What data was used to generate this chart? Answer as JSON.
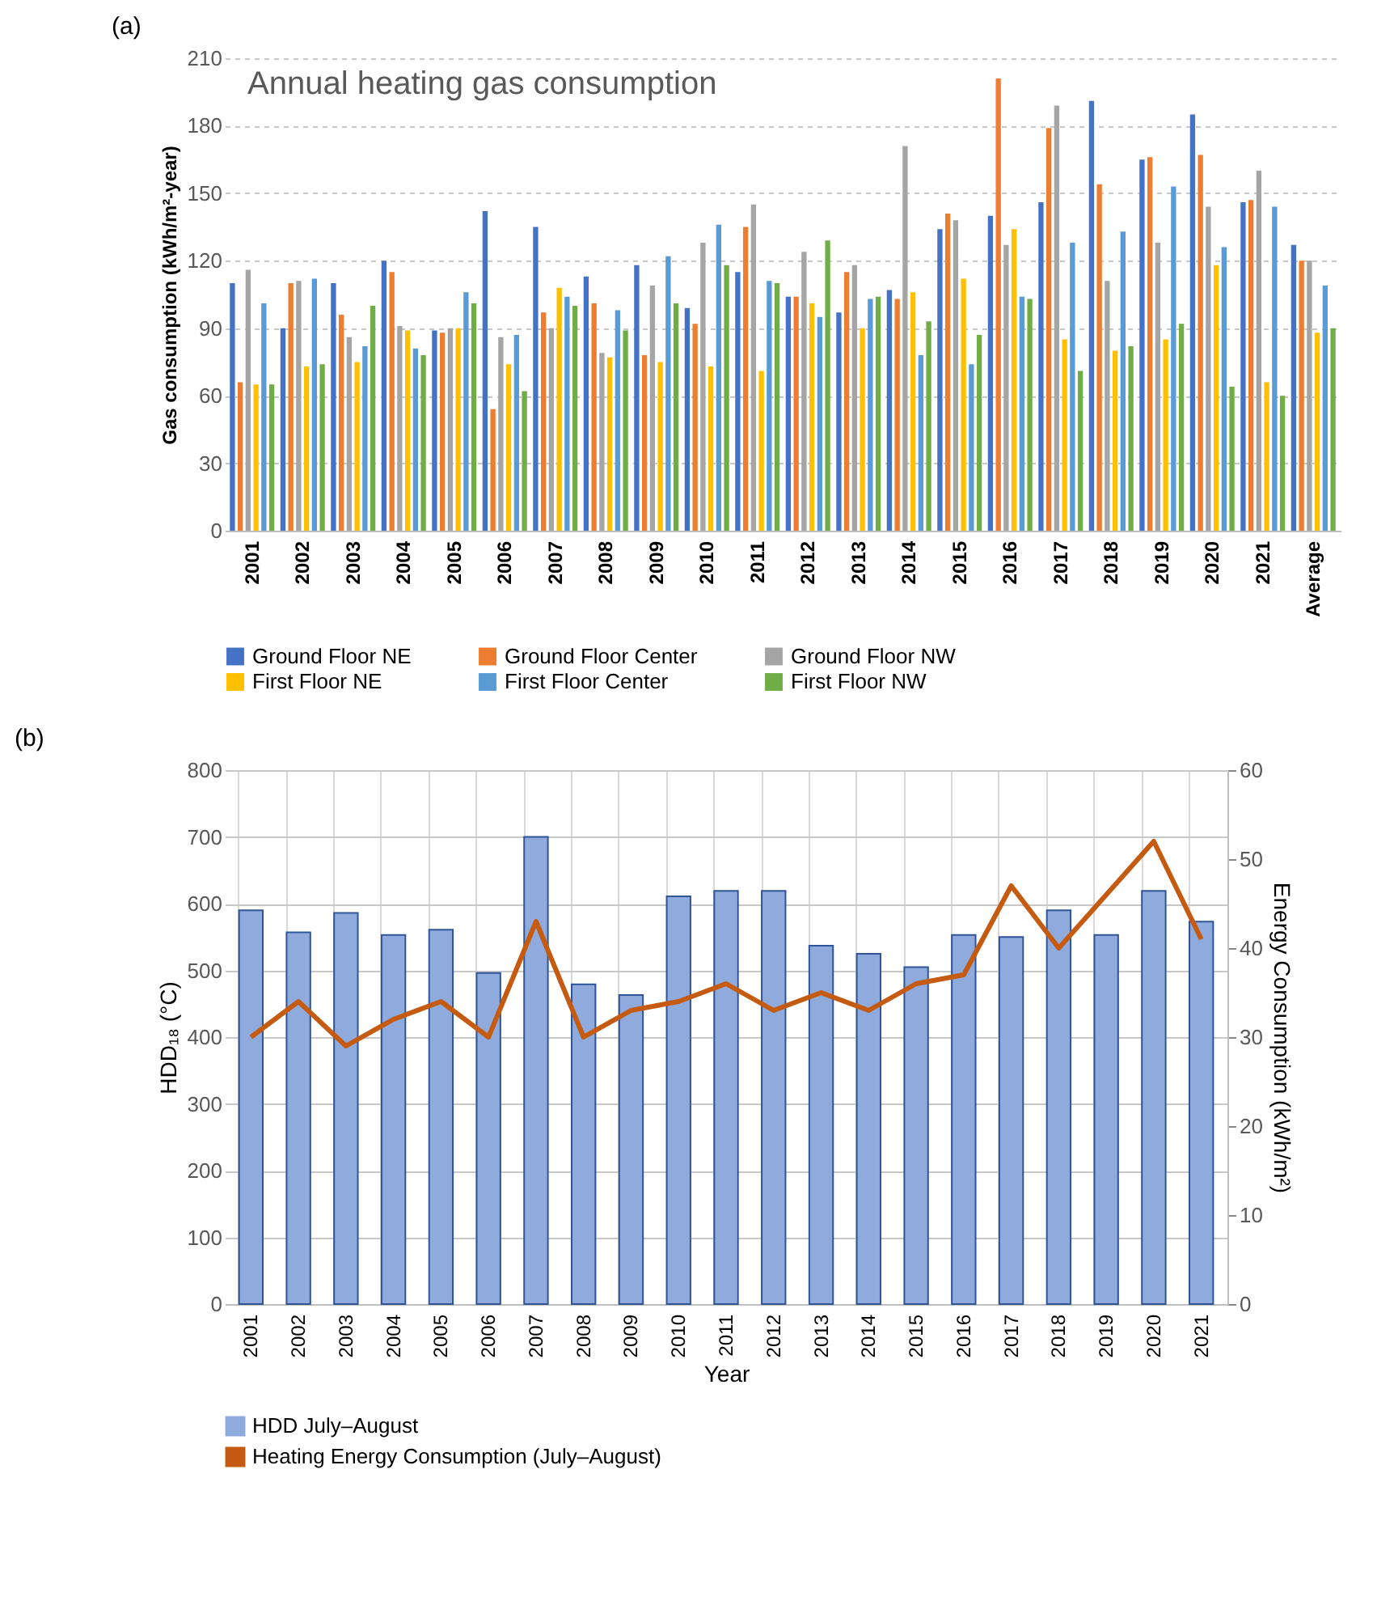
{
  "chart_data": [
    {
      "type": "bar",
      "title": "Annual heating gas consumption",
      "ylabel": "Gas consumption  (kWh/m²-year)",
      "annotations": [
        "(a)"
      ],
      "categories": [
        "2001",
        "2002",
        "2003",
        "2004",
        "2005",
        "2006",
        "2007",
        "2008",
        "2009",
        "2010",
        "2011",
        "2012",
        "2013",
        "2014",
        "2015",
        "2016",
        "2017",
        "2018",
        "2019",
        "2020",
        "2021",
        "Average"
      ],
      "series": [
        {
          "name": "Ground Floor NE",
          "color": "#4472c4",
          "values": [
            110,
            90,
            110,
            120,
            89,
            142,
            135,
            113,
            118,
            99,
            115,
            104,
            97,
            107,
            134,
            140,
            146,
            191,
            165,
            185,
            146,
            127
          ]
        },
        {
          "name": "Ground Floor Center",
          "color": "#ed7d31",
          "values": [
            66,
            110,
            96,
            115,
            88,
            54,
            97,
            101,
            78,
            92,
            135,
            104,
            115,
            103,
            141,
            201,
            179,
            154,
            166,
            167,
            147,
            120
          ]
        },
        {
          "name": "Ground Floor NW",
          "color": "#a5a5a5",
          "values": [
            116,
            111,
            86,
            91,
            90,
            86,
            90,
            79,
            109,
            128,
            145,
            124,
            118,
            171,
            138,
            127,
            189,
            111,
            128,
            144,
            160,
            120
          ]
        },
        {
          "name": "First Floor NE",
          "color": "#ffc000",
          "values": [
            65,
            73,
            75,
            89,
            90,
            74,
            108,
            77,
            75,
            73,
            71,
            101,
            90,
            106,
            112,
            134,
            85,
            80,
            85,
            118,
            66,
            88
          ]
        },
        {
          "name": "First Floor Center",
          "color": "#5b9bd5",
          "values": [
            101,
            112,
            82,
            81,
            106,
            87,
            104,
            98,
            122,
            136,
            111,
            95,
            103,
            78,
            74,
            104,
            128,
            133,
            153,
            126,
            144,
            109
          ]
        },
        {
          "name": "First Floor NW",
          "color": "#70ad47",
          "values": [
            65,
            74,
            100,
            78,
            101,
            62,
            100,
            89,
            101,
            118,
            110,
            129,
            104,
            93,
            87,
            103,
            71,
            82,
            92,
            64,
            60,
            90
          ]
        }
      ],
      "ylim": [
        0,
        210
      ],
      "yticks": [
        0,
        30,
        60,
        90,
        120,
        150,
        180,
        210
      ],
      "grid": "y",
      "legend": "bottom"
    },
    {
      "type": "bar",
      "xlabel": "Year",
      "ylabel": "HDD₁₈ (°C)",
      "y2label": "Energy Consumption (kWh/m²)",
      "annotations": [
        "(b)"
      ],
      "categories": [
        "2001",
        "2002",
        "2003",
        "2004",
        "2005",
        "2006",
        "2007",
        "2008",
        "2009",
        "2010",
        "2011",
        "2012",
        "2013",
        "2014",
        "2015",
        "2016",
        "2017",
        "2018",
        "2019",
        "2020",
        "2021"
      ],
      "series": [
        {
          "name": "HDD July–August",
          "color": "#8faadc",
          "values": [
            590,
            557,
            586,
            553,
            561,
            496,
            700,
            479,
            463,
            611,
            619,
            619,
            537,
            525,
            505,
            553,
            550,
            590,
            553,
            619,
            573
          ]
        },
        {
          "name": "Heating Energy Consumption (July–August)",
          "type": "line",
          "axis": "y2",
          "color": "#c55a11",
          "values": [
            30,
            34,
            29,
            32,
            34,
            30,
            43,
            30,
            33,
            34,
            36,
            33,
            35,
            33,
            36,
            37,
            47,
            40,
            46,
            52,
            41
          ]
        }
      ],
      "ylim": [
        0,
        800
      ],
      "yticks": [
        0,
        100,
        200,
        300,
        400,
        500,
        600,
        700,
        800
      ],
      "y2lim": [
        0,
        60
      ],
      "y2ticks": [
        0,
        10,
        20,
        30,
        40,
        50,
        60
      ],
      "grid": true,
      "legend": "bottom"
    }
  ]
}
